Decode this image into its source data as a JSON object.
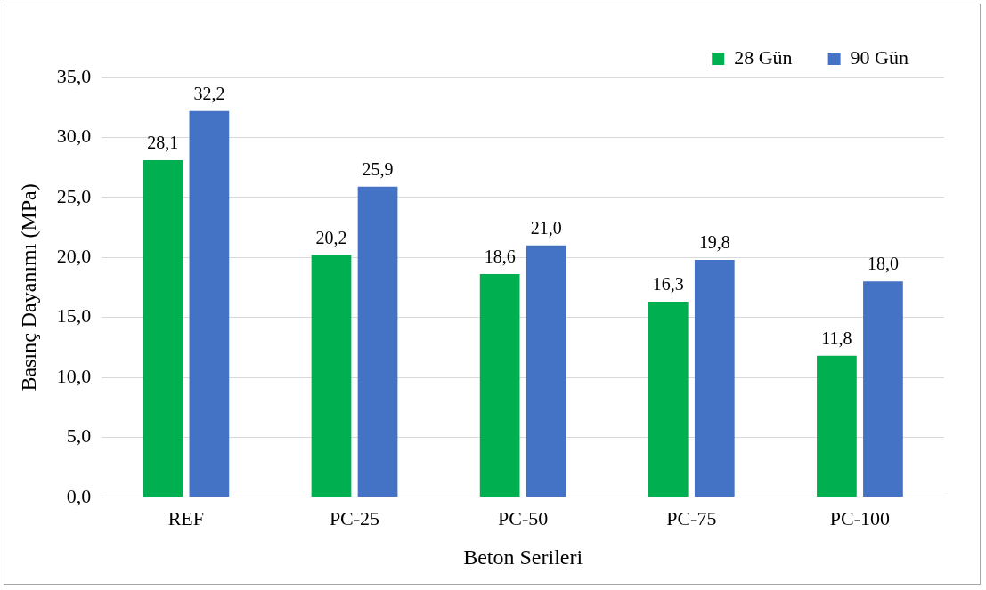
{
  "chart_data": {
    "type": "bar",
    "xlabel": "Beton Serileri",
    "ylabel": "Basınç Dayanımı (MPa)",
    "categories": [
      "REF",
      "PC-25",
      "PC-50",
      "PC-75",
      "PC-100"
    ],
    "series": [
      {
        "name": "28 Gün",
        "color": "#00b050",
        "values": [
          28.1,
          20.2,
          18.6,
          16.3,
          11.8
        ],
        "value_labels": [
          "28,1",
          "20,2",
          "18,6",
          "16,3",
          "11,8"
        ]
      },
      {
        "name": "90 Gün",
        "color": "#4472c4",
        "values": [
          32.2,
          25.9,
          21.0,
          19.8,
          18.0
        ],
        "value_labels": [
          "32,2",
          "25,9",
          "21,0",
          "19,8",
          "18,0"
        ]
      }
    ],
    "ylim": [
      0,
      35
    ],
    "yticks": [
      {
        "value": 0,
        "label": "0,0"
      },
      {
        "value": 5,
        "label": "5,0"
      },
      {
        "value": 10,
        "label": "10,0"
      },
      {
        "value": 15,
        "label": "15,0"
      },
      {
        "value": 20,
        "label": "20,0"
      },
      {
        "value": 25,
        "label": "25,0"
      },
      {
        "value": 30,
        "label": "30,0"
      },
      {
        "value": 35,
        "label": "35,0"
      }
    ],
    "grid": "y",
    "legend": "top right"
  }
}
